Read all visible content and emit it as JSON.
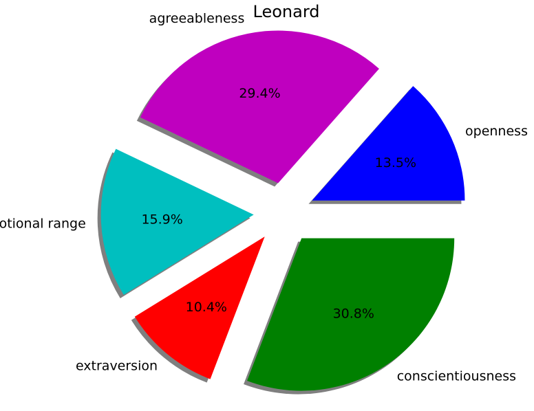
{
  "chart_data": {
    "type": "pie",
    "title": "Leonard",
    "slices": [
      {
        "name": "openness",
        "value": 13.5,
        "pct_label": "13.5%",
        "color": "#0000FF"
      },
      {
        "name": "agreeableness",
        "value": 29.4,
        "pct_label": "29.4%",
        "color": "#BF00BF"
      },
      {
        "name": "emotional range",
        "value": 15.9,
        "pct_label": "15.9%",
        "color": "#00BFBF"
      },
      {
        "name": "extraversion",
        "value": 10.4,
        "pct_label": "10.4%",
        "color": "#FF0000"
      },
      {
        "name": "conscientiousness",
        "value": 30.8,
        "pct_label": "30.8%",
        "color": "#008000"
      }
    ],
    "start_angle_deg": 0,
    "direction": "counterclockwise",
    "exploded": true,
    "shadow": true
  }
}
